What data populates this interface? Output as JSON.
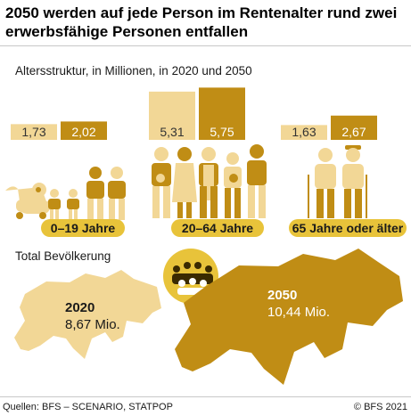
{
  "title": "2050 werden auf jede Person im Rentenalter rund zwei erwerbsfähige Personen entfallen",
  "footer": {
    "source": "Quellen: BFS – SCENARIO, STATPOP",
    "copyright": "© BFS 2021"
  },
  "colors": {
    "year_2020": "#f2d796",
    "year_2050": "#c08d15",
    "badge": "#e8c33a",
    "badge_dark": "#3a2a00"
  },
  "chart_data": {
    "type": "bar",
    "title": "Altersstruktur, in Millionen, in 2020 und 2050",
    "unit": "Millionen",
    "categories": [
      "0–19 Jahre",
      "20–64 Jahre",
      "65 Jahre oder älter"
    ],
    "series": [
      {
        "name": "2020",
        "values": [
          1.73,
          5.31,
          1.63
        ],
        "labels": [
          "1,73",
          "5,31",
          "1,63"
        ]
      },
      {
        "name": "2050",
        "values": [
          2.02,
          5.75,
          2.67
        ],
        "labels": [
          "2,02",
          "5,75",
          "2,67"
        ]
      }
    ],
    "total": {
      "label": "Total Bevölkerung",
      "items": [
        {
          "year": "2020",
          "value": 8.67,
          "text": "8,67 Mio."
        },
        {
          "year": "2050",
          "value": 10.44,
          "text": "10,44 Mio."
        }
      ]
    }
  }
}
